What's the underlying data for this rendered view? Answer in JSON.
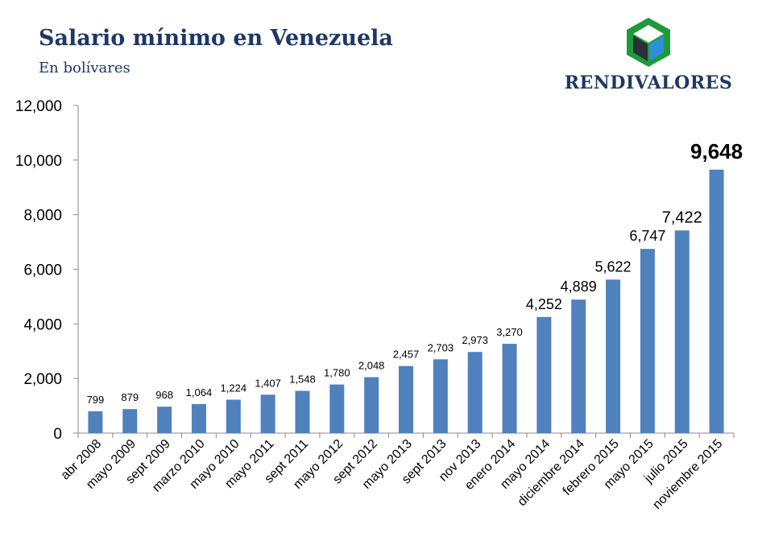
{
  "title": "Salario mínimo en Venezuela",
  "subtitle": "En bolívares",
  "logo": {
    "text": "RENDIVALORES",
    "icon": "cube-icon",
    "colors": {
      "green": "#1e9a3a",
      "blue": "#2f8fd6",
      "dark": "#2a2f3a"
    }
  },
  "chart_data": {
    "type": "bar",
    "title": "Salario mínimo en Venezuela",
    "subtitle": "En bolívares",
    "xlabel": "",
    "ylabel": "",
    "ylim": [
      0,
      12000
    ],
    "yticks": [
      0,
      2000,
      4000,
      6000,
      8000,
      10000,
      12000
    ],
    "ytick_labels": [
      "0",
      "2,000",
      "4,000",
      "6,000",
      "8,000",
      "10,000",
      "12,000"
    ],
    "grid": false,
    "bar_color": "#4f81bd",
    "categories": [
      "abr 2008",
      "mayo 2009",
      "sept 2009",
      "marzo 2010",
      "mayo 2010",
      "mayo 2011",
      "sept 2011",
      "mayo 2012",
      "sept 2012",
      "mayo 2013",
      "sept 2013",
      "nov 2013",
      "enero 2014",
      "mayo 2014",
      "diciembre 2014",
      "febrero 2015",
      "mayo 2015",
      "julio 2015",
      "noviembre 2015"
    ],
    "values": [
      799,
      879,
      968,
      1064,
      1224,
      1407,
      1548,
      1780,
      2048,
      2457,
      2703,
      2973,
      3270,
      4252,
      4889,
      5622,
      6747,
      7422,
      9648
    ],
    "data_labels": [
      "799",
      "879",
      "968",
      "1,064",
      "1,224",
      "1,407",
      "1,548",
      "1,780",
      "2,048",
      "2,457",
      "2,703",
      "2,973",
      "3,270",
      "4,252",
      "4,889",
      "5,622",
      "6,747",
      "7,422",
      "9,648"
    ]
  }
}
